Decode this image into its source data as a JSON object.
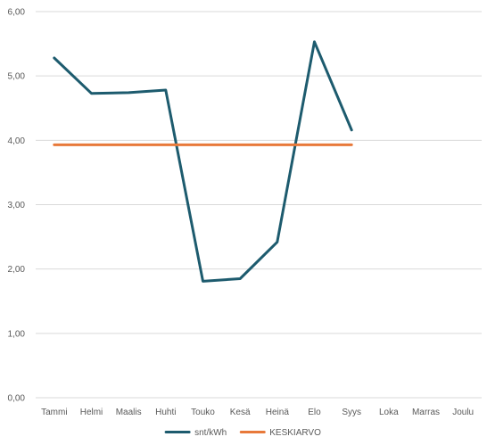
{
  "chart_data": {
    "type": "line",
    "categories": [
      "Tammi",
      "Helmi",
      "Maalis",
      "Huhti",
      "Touko",
      "Kesä",
      "Heinä",
      "Elo",
      "Syys",
      "Loka",
      "Marras",
      "Joulu"
    ],
    "series": [
      {
        "name": "snt/kWh",
        "values": [
          5.28,
          4.73,
          4.74,
          4.78,
          1.81,
          1.85,
          2.42,
          5.53,
          4.16,
          null,
          null,
          null
        ],
        "color": "#1d5b6e"
      },
      {
        "name": "KESKIARVO",
        "values": [
          3.93,
          3.93,
          3.93,
          3.93,
          3.93,
          3.93,
          3.93,
          3.93,
          3.93,
          null,
          null,
          null
        ],
        "color": "#e8793a"
      }
    ],
    "ylim": [
      0,
      6
    ],
    "yticks": [
      "0,00",
      "1,00",
      "2,00",
      "3,00",
      "4,00",
      "5,00",
      "6,00"
    ],
    "grid": true,
    "legend_position": "bottom",
    "title": "",
    "xlabel": "",
    "ylabel": ""
  }
}
